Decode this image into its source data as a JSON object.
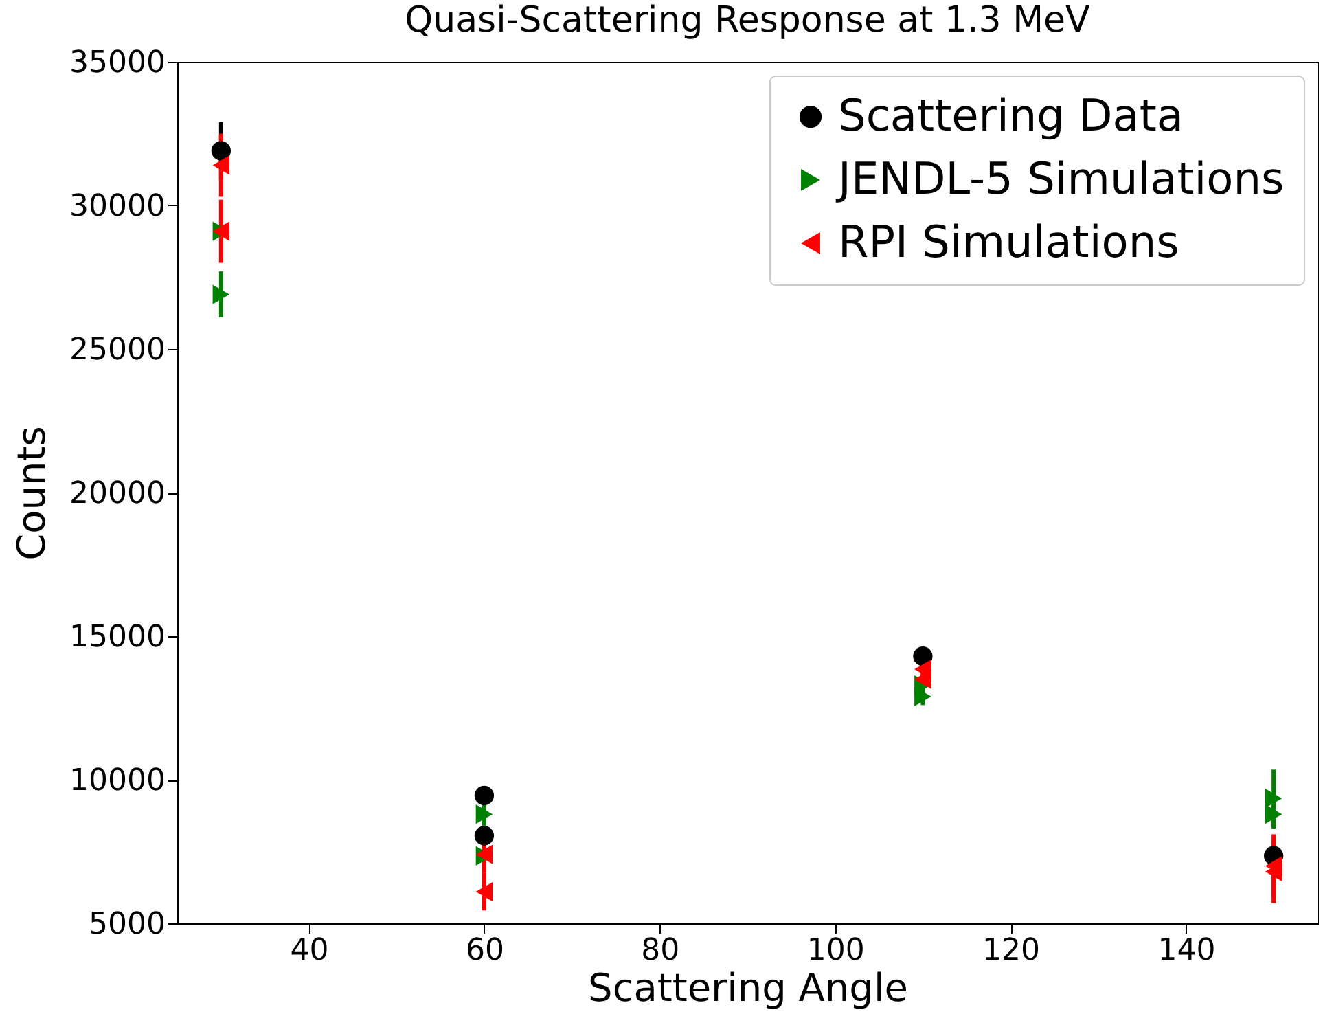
{
  "chart_data": {
    "type": "scatter",
    "title": "Quasi-Scattering Response at 1.3 MeV",
    "xlabel": "Scattering Angle",
    "ylabel": "Counts",
    "xlim": [
      25,
      155
    ],
    "xticks": [
      40,
      60,
      80,
      100,
      120,
      140
    ],
    "ylim": [
      5000,
      35000
    ],
    "yticks": [
      5000,
      10000,
      15000,
      20000,
      25000,
      30000,
      35000
    ],
    "grid": false,
    "legend": "top right",
    "series": [
      {
        "name": "Scattering Data",
        "color": "#000000",
        "marker": "circle",
        "x": [
          30,
          60,
          60,
          110,
          150
        ],
        "values": [
          31900,
          9450,
          8050,
          14300,
          7350
        ],
        "errors": [
          1000,
          300,
          300,
          300,
          200
        ]
      },
      {
        "name": "JENDL-5 Simulations",
        "color": "#008000",
        "marker": "triangle-right",
        "x": [
          30,
          30,
          60,
          60,
          110,
          110,
          150,
          150
        ],
        "values": [
          29100,
          26900,
          8800,
          7350,
          13300,
          12900,
          9350,
          8800
        ],
        "errors": [
          null,
          800,
          400,
          null,
          300,
          300,
          1000,
          500
        ]
      },
      {
        "name": "RPI Simulations",
        "color": "#ff0000",
        "marker": "triangle-left",
        "x": [
          30,
          30,
          60,
          60,
          110,
          110,
          150,
          150
        ],
        "values": [
          31400,
          29100,
          7400,
          6100,
          13850,
          13500,
          7000,
          6800
        ],
        "errors": [
          1100,
          1100,
          650,
          650,
          300,
          300,
          1100,
          1100
        ]
      }
    ]
  }
}
